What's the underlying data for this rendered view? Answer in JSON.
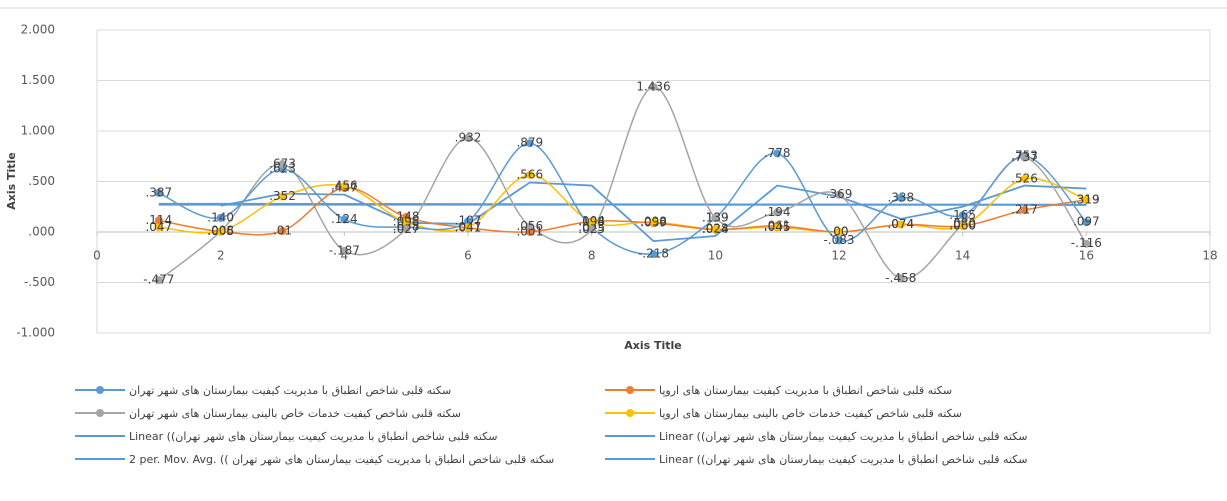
{
  "chart_data": {
    "type": "scatter",
    "x_label": "Axis Title",
    "y_label": "Axis Title",
    "xlim": [
      0,
      18
    ],
    "xticks": [
      0,
      2,
      4,
      6,
      8,
      10,
      12,
      14,
      16,
      18
    ],
    "ylim": [
      -1,
      2
    ],
    "yticks": [
      {
        "value": -1,
        "label": "-1.000"
      },
      {
        "value": -0.5,
        "label": "-.500"
      },
      {
        "value": 0,
        "label": ".000"
      },
      {
        "value": 0.5,
        "label": ".500"
      },
      {
        "value": 1,
        "label": "1.000"
      },
      {
        "value": 1.5,
        "label": "1.500"
      },
      {
        "value": 2,
        "label": "2.000"
      }
    ],
    "grid": true,
    "legend": "bottom",
    "series": [
      {
        "name": "سکته قلبی  شاخص  انطباق با مدیریت کیفیت بیمارستان های شهر  تهران",
        "color": "#5b9bd5",
        "marker": true,
        "x": [
          1,
          2,
          3,
          4,
          5,
          6,
          7,
          8,
          9,
          10,
          11,
          12,
          13,
          14,
          15,
          16
        ],
        "values": [
          0.387,
          0.14,
          0.623,
          0.124,
          0.048,
          0.107,
          0.879,
          0.045,
          -0.218,
          0.139,
          0.778,
          -0.083,
          0.338,
          0.165,
          0.753,
          0.097
        ],
        "value_labels": [
          ".387",
          ".140",
          ".623",
          ".124",
          ".048",
          ".107",
          ".879",
          ".045",
          "-.218",
          ".139",
          ".778",
          "-.083",
          ".338",
          ".165",
          ".753",
          ".097"
        ]
      },
      {
        "name": "سکته قلبی  شاخص  انطباق با مدیریت کیفیت بیمارستان های اروپا",
        "color": "#ed7d31",
        "marker": true,
        "x": [
          1,
          2,
          3,
          4,
          5,
          6,
          7,
          8,
          9,
          10,
          11,
          12,
          13,
          14,
          15,
          16
        ],
        "values": [
          0.114,
          0.005,
          0.01,
          0.437,
          0.148,
          0.041,
          0.001,
          0.104,
          0.089,
          0.024,
          0.061,
          0,
          0.074,
          0.06,
          0.217,
          0.319
        ],
        "value_labels": [
          ".114",
          ".005",
          ".01",
          ".437",
          ".148",
          ".041",
          ".001",
          ".104",
          ".089",
          ".024",
          ".061",
          ".00",
          ".074",
          ".060",
          ".217",
          ".319"
        ]
      },
      {
        "name": "سکته قلبی  شاخص کیفیت خدمات خاص بالینی  بیمارستان های شهر  تهران",
        "color": "#a5a5a5",
        "marker": true,
        "x": [
          1,
          2,
          3,
          4,
          5,
          6,
          7,
          8,
          9,
          10,
          11,
          12,
          13,
          14,
          15,
          16
        ],
        "values": [
          -0.477,
          0.006,
          0.673,
          -0.187,
          0.027,
          0.932,
          0.056,
          0.025,
          1.436,
          0.139,
          0.194,
          0.369,
          -0.458,
          0.08,
          0.737,
          -0.116
        ],
        "value_labels": [
          "-.477",
          ".006",
          ".673",
          "-.187",
          ".027",
          ".932",
          ".056",
          ".025",
          "1.436",
          ".139",
          ".194",
          ".369",
          "-.458",
          ".080",
          ".737",
          "-.116"
        ]
      },
      {
        "name": "سکته قلبی  شاخص کیفیت خدمات خاص بالینی بیمارستان های اروپا",
        "color": "#ffc000",
        "marker": true,
        "x": [
          1,
          2,
          3,
          4,
          5,
          6,
          7,
          8,
          9,
          10,
          11,
          12,
          13,
          14,
          15,
          16
        ],
        "values": [
          0.047,
          0.008,
          0.352,
          0.456,
          0.098,
          0.047,
          0.566,
          0.098,
          0.098,
          0.028,
          0.045,
          0,
          0.074,
          0.06,
          0.526,
          0.319
        ],
        "value_labels": [
          ".047",
          ".008",
          ".352",
          ".456",
          ".098",
          ".047",
          ".566",
          ".098",
          ".098",
          ".028",
          ".045",
          ".00",
          ".074",
          ".060",
          ".526",
          ".319"
        ]
      },
      {
        "name": "سکته قلبی  شاخص  انطباق با مدیریت کیفیت بیمارستان های شهر تهران)) Linear",
        "color": "#5b9bd5",
        "marker": false,
        "x": [
          1,
          16
        ],
        "values": [
          0.27,
          0.27
        ]
      },
      {
        "name": "سکته قلبی  شاخص  انطباق با مدیریت کیفیت بیمارستان های شهر تهران)) Linear",
        "color": "#5b9bd5",
        "marker": false,
        "x": [
          1,
          16
        ],
        "values": [
          0.28,
          0.27
        ]
      },
      {
        "name": "2 per. Mov. Avg. (( سکته قلبی  شاخص  انطباق با مدیریت کیفیت بیمارستان های شهر تهران",
        "color": "#5b9bd5",
        "marker": false,
        "x": [
          2,
          3,
          4,
          5,
          6,
          7,
          8,
          9,
          10,
          11,
          12,
          13,
          14,
          15,
          16
        ],
        "values": [
          0.26,
          0.38,
          0.37,
          0.09,
          0.08,
          0.49,
          0.46,
          -0.09,
          -0.04,
          0.46,
          0.35,
          0.13,
          0.25,
          0.46,
          0.43
        ]
      },
      {
        "name": "سکته قلبی  شاخص  انطباق با مدیریت کیفیت بیمارستان های شهر تهران)) Linear",
        "color": "#5b9bd5",
        "marker": false,
        "x": [
          1,
          16
        ],
        "values": [
          0.275,
          0.268
        ]
      }
    ]
  }
}
